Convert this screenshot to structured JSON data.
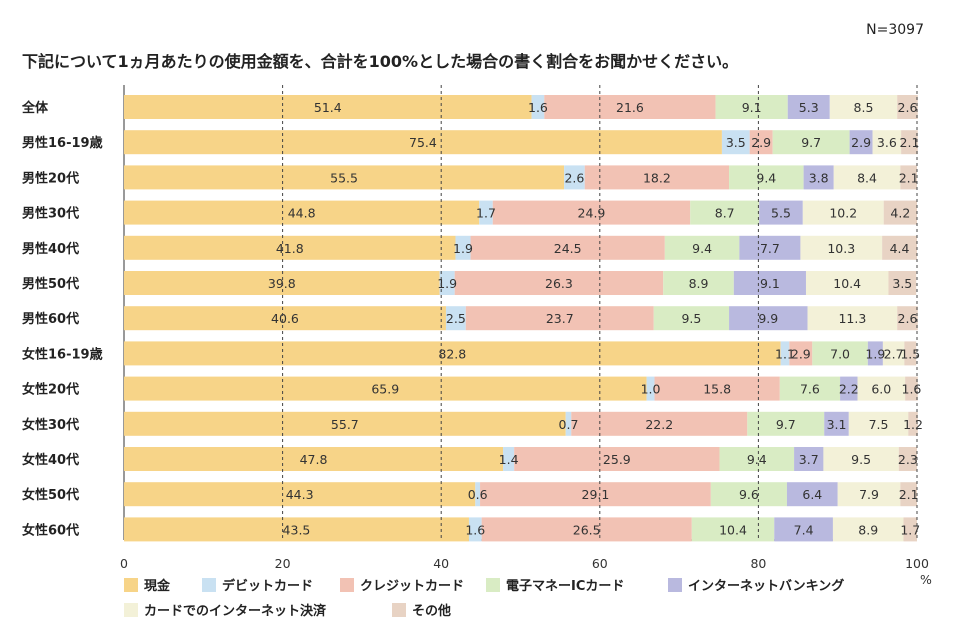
{
  "note": "N=3097",
  "title": "下記について1ヵ月あたりの使用金額を、合計を100%とした場合の書く割合をお聞かせください。",
  "chart_data": {
    "type": "bar",
    "orientation": "horizontal",
    "stacked": true,
    "categories": [
      "全体",
      "男性16-19歳",
      "男性20代",
      "男性30代",
      "男性40代",
      "男性50代",
      "男性60代",
      "女性16-19歳",
      "女性20代",
      "女性30代",
      "女性40代",
      "女性50代",
      "女性60代"
    ],
    "series": [
      {
        "name": "現金",
        "color": "#f7d488",
        "values": [
          51.4,
          75.4,
          55.5,
          44.8,
          41.8,
          39.8,
          40.6,
          82.8,
          65.9,
          55.7,
          47.8,
          44.3,
          43.5
        ]
      },
      {
        "name": "デビットカード",
        "color": "#c9e1f2",
        "values": [
          1.6,
          3.5,
          2.6,
          1.7,
          1.9,
          1.9,
          2.5,
          1.1,
          1.0,
          0.7,
          1.4,
          0.6,
          1.6
        ]
      },
      {
        "name": "クレジットカード",
        "color": "#f2c2b4",
        "values": [
          21.6,
          2.9,
          18.2,
          24.9,
          24.5,
          26.3,
          23.7,
          2.9,
          15.8,
          22.2,
          25.9,
          29.1,
          26.5
        ]
      },
      {
        "name": "電子マネーICカード",
        "color": "#d9ecc4",
        "values": [
          9.1,
          9.7,
          9.4,
          8.7,
          9.4,
          8.9,
          9.5,
          7.0,
          7.6,
          9.7,
          9.4,
          9.6,
          10.4
        ]
      },
      {
        "name": "インターネットバンキング",
        "color": "#b9b9df",
        "values": [
          5.3,
          2.9,
          3.8,
          5.5,
          7.7,
          9.1,
          9.9,
          1.9,
          2.2,
          3.1,
          3.7,
          6.4,
          7.4
        ]
      },
      {
        "name": "カードでのインターネット決済",
        "color": "#f3f1d8",
        "values": [
          8.5,
          3.6,
          8.4,
          10.2,
          10.3,
          10.4,
          11.3,
          2.7,
          6.0,
          7.5,
          9.5,
          7.9,
          8.9
        ]
      },
      {
        "name": "その他",
        "color": "#e8d3c4",
        "values": [
          2.6,
          2.1,
          2.1,
          4.2,
          4.4,
          3.5,
          2.6,
          1.5,
          1.6,
          1.2,
          2.3,
          2.1,
          1.7
        ]
      }
    ],
    "xlim": [
      0,
      100
    ],
    "xticks": [
      "0",
      "20",
      "40",
      "60",
      "80",
      "100"
    ],
    "xunit": "%",
    "grid": "dashed vertical at 20, 40, 60, 80",
    "legend_position": "bottom"
  }
}
